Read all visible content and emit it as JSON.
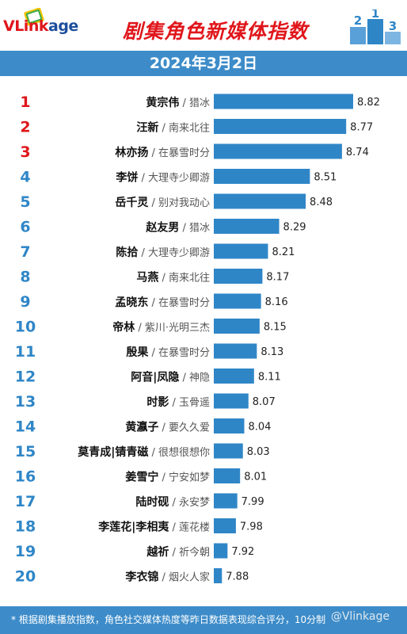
{
  "header": {
    "logo_text_main": "VLink",
    "logo_text_tail": "age",
    "title": "剧集角色新媒体指数",
    "podium_labels": [
      "2",
      "1",
      "3"
    ]
  },
  "date": "2024年3月2日",
  "footer": {
    "note": "* 根据剧集播放指数，角色社交媒体热度等昨日数据表现综合评分，10分制",
    "watermark": "@Vlinkage"
  },
  "colors": {
    "bar": "#2f86c7",
    "rank_top3": "#e0161b",
    "rank_rest": "#2f86c7",
    "band": "#3d8cc9"
  },
  "chart_data": {
    "type": "bar",
    "orientation": "horizontal",
    "title": "剧集角色新媒体指数",
    "ranks": [
      "1",
      "2",
      "3",
      "4",
      "5",
      "6",
      "7",
      "8",
      "9",
      "10",
      "11",
      "12",
      "13",
      "14",
      "15",
      "16",
      "17",
      "18",
      "19",
      "20"
    ],
    "characters": [
      "黄宗伟",
      "汪新",
      "林亦扬",
      "李饼",
      "岳千灵",
      "赵友男",
      "陈拾",
      "马燕",
      "孟晓东",
      "帝林",
      "殷果",
      "阿音|凤隐",
      "时影",
      "黄瀛子",
      "莫青成|锖青磁",
      "姜雪宁",
      "陆时砚",
      "李莲花|李相夷",
      "越祈",
      "李衣锦"
    ],
    "dramas": [
      "猎冰",
      "南来北往",
      "在暴雪时分",
      "大理寺少卿游",
      "别对我动心",
      "猎冰",
      "大理寺少卿游",
      "南来北往",
      "在暴雪时分",
      "紫川·光明三杰",
      "在暴雪时分",
      "神隐",
      "玉骨遥",
      "要久久爱",
      "很想很想你",
      "宁安如梦",
      "永安梦",
      "莲花楼",
      "祈今朝",
      "烟火人家"
    ],
    "values": [
      8.82,
      8.77,
      8.74,
      8.51,
      8.48,
      8.29,
      8.21,
      8.17,
      8.16,
      8.15,
      8.13,
      8.11,
      8.07,
      8.04,
      8.03,
      8.01,
      7.99,
      7.98,
      7.92,
      7.88
    ],
    "value_labels": [
      "8.82",
      "8.77",
      "8.74",
      "8.51",
      "8.48",
      "8.29",
      "8.21",
      "8.17",
      "8.16",
      "8.15",
      "8.13",
      "8.11",
      "8.07",
      "8.04",
      "8.03",
      "8.01",
      "7.99",
      "7.98",
      "7.92",
      "7.88"
    ],
    "separator": " / "
  }
}
